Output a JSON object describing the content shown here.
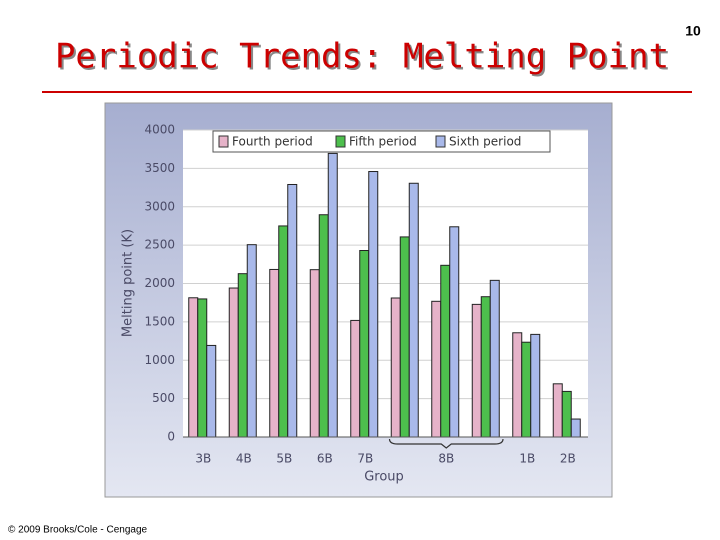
{
  "title": "Periodic Trends: Melting Point",
  "page_number": "10",
  "copyright": "© 2009 Brooks/Cole - Cengage",
  "chart_data": {
    "type": "bar",
    "y_label": "Melting point (K)",
    "x_label": "Group",
    "categories": [
      "3B",
      "4B",
      "5B",
      "6B",
      "7B",
      null,
      "8B",
      null,
      "1B",
      "2B"
    ],
    "series": [
      {
        "name": "Fourth period",
        "color": "#e6b3c9",
        "values": [
          1814,
          1941,
          2183,
          2180,
          1519,
          1811,
          1768,
          1728,
          1358,
          693
        ]
      },
      {
        "name": "Fifth period",
        "color": "#4dbf4d",
        "values": [
          1799,
          2128,
          2750,
          2896,
          2430,
          2607,
          2237,
          1828,
          1235,
          594
        ]
      },
      {
        "name": "Sixth period",
        "color": "#a9b9ea",
        "values": [
          1193,
          2506,
          3290,
          3695,
          3459,
          3306,
          2739,
          2041,
          1337,
          234
        ]
      }
    ],
    "ylim": [
      0,
      4000
    ],
    "yticks": [
      0,
      500,
      1000,
      1500,
      2000,
      2500,
      3000,
      3500,
      4000
    ],
    "grid": true
  }
}
